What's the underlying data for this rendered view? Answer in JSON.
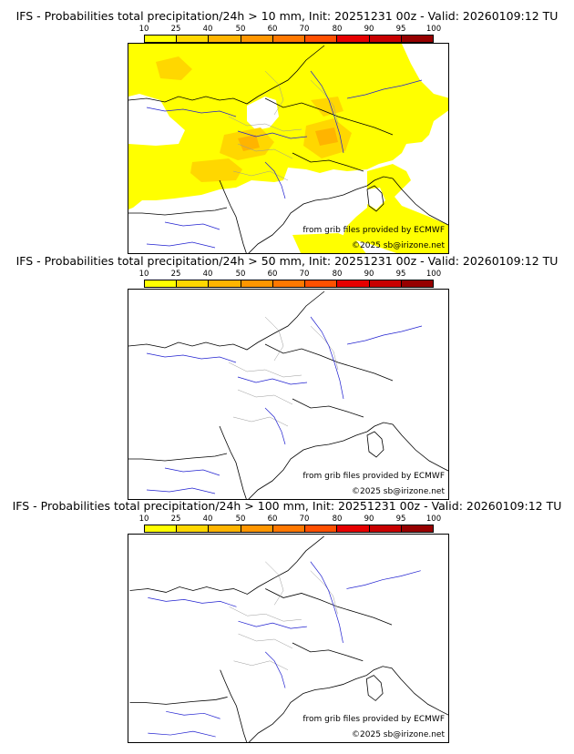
{
  "colorbar": {
    "ticks": [
      "10",
      "25",
      "40",
      "50",
      "60",
      "70",
      "80",
      "90",
      "95",
      "100"
    ],
    "colors": [
      "#ffff00",
      "#ffd700",
      "#ffb400",
      "#ff9600",
      "#ff7800",
      "#ff5000",
      "#e60000",
      "#c80000",
      "#960000",
      "#640000"
    ]
  },
  "panels": [
    {
      "title": "IFS - Probabilities total precipitation/24h > 10 mm, Init: 20251231 00z - Valid: 20260109:12 TU",
      "threshold_mm": 10,
      "credit_data": "from grib files provided by ECMWF",
      "credit_copyright": "©2025 sb@irizone.net"
    },
    {
      "title": "IFS - Probabilities total precipitation/24h > 50 mm, Init: 20251231 00z - Valid: 20260109:12 TU",
      "threshold_mm": 50,
      "credit_data": "from grib files provided by ECMWF",
      "credit_copyright": "©2025 sb@irizone.net"
    },
    {
      "title": "IFS - Probabilities total precipitation/24h > 100 mm, Init: 20251231 00z - Valid: 20260109:12 TU",
      "threshold_mm": 100,
      "credit_data": "from grib files provided by ECMWF",
      "credit_copyright": "©2025 sb@irizone.net"
    }
  ]
}
